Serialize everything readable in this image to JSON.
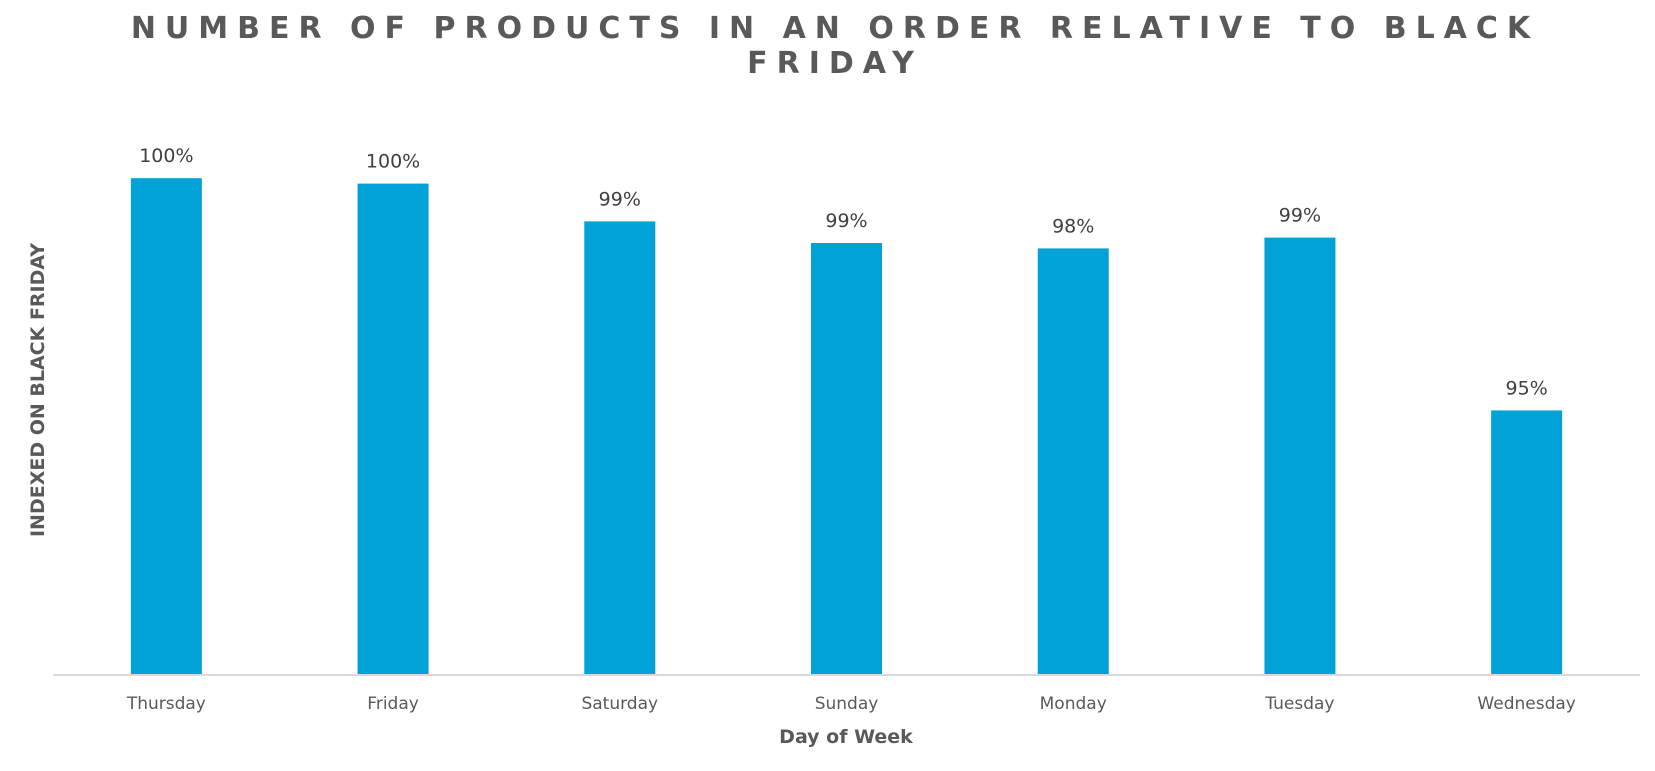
{
  "chart_data": {
    "type": "bar",
    "title_lines": [
      "NUMBER OF PRODUCTS IN AN ORDER RELATIVE TO BLACK",
      "FRIDAY"
    ],
    "categories": [
      "Thursday",
      "Friday",
      "Saturday",
      "Sunday",
      "Monday",
      "Tuesday",
      "Wednesday"
    ],
    "values": [
      99.7,
      99.6,
      98.9,
      98.5,
      98.4,
      98.6,
      95.4
    ],
    "value_labels": [
      "100%",
      "100%",
      "99%",
      "99%",
      "98%",
      "99%",
      "95%"
    ],
    "xlabel": "Day of Week",
    "ylabel": "INDEXED ON BLACK FRIDAY",
    "ylim": [
      90.5,
      100.5
    ],
    "grid": false,
    "legend": "none",
    "bar_color": "#00A2D7",
    "axis_color": "#D9D9D9"
  }
}
